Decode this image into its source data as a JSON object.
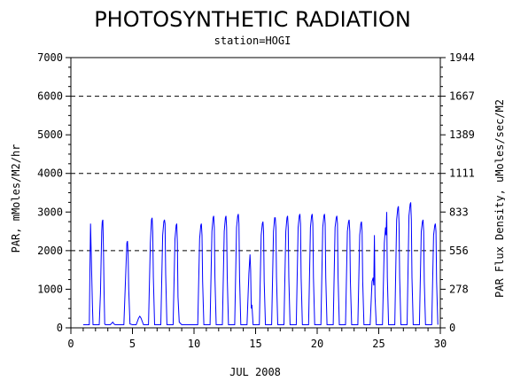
{
  "chart_data": {
    "type": "line",
    "title": "PHOTOSYNTHETIC RADIATION",
    "subtitle": "station=HOGI",
    "xlabel": "JUL 2008",
    "ylabel": "PAR, mMoles/M2/hr",
    "y2label": "PAR Flux Density, uMoles/sec/M2",
    "xlim": [
      0,
      30
    ],
    "ylim": [
      0,
      7000
    ],
    "x_ticks": [
      "0",
      "5",
      "10",
      "15",
      "20",
      "25",
      "30"
    ],
    "y_ticks": [
      "0",
      "1000",
      "2000",
      "3000",
      "4000",
      "5000",
      "6000",
      "7000"
    ],
    "y2_ticks": [
      "0",
      "278",
      "556",
      "833",
      "1111",
      "1389",
      "1667",
      "1944"
    ],
    "grid_y_dashed": [
      2000,
      4000,
      6000
    ],
    "line_color": "#0000ff",
    "series": [
      {
        "values_note_excluded": true,
        "x": [
          1.0,
          1.5,
          1.55,
          1.6,
          1.65,
          1.7,
          1.75,
          1.8,
          1.85,
          1.9,
          2.3,
          2.4,
          2.5,
          2.55,
          2.6,
          2.65,
          2.7,
          2.75,
          2.8,
          2.9,
          3.2,
          3.4,
          3.5,
          3.6,
          3.8,
          4.3,
          4.45,
          4.55,
          4.6,
          4.65,
          4.7,
          4.8,
          5.0,
          5.3,
          5.5,
          5.6,
          5.7,
          5.9,
          6.3,
          6.45,
          6.55,
          6.6,
          6.65,
          6.7,
          6.8,
          7.3,
          7.45,
          7.55,
          7.6,
          7.65,
          7.7,
          7.8,
          8.3,
          8.45,
          8.55,
          8.6,
          8.65,
          8.7,
          8.8,
          9.0,
          10.3,
          10.45,
          10.55,
          10.6,
          10.65,
          10.7,
          10.8,
          11.3,
          11.45,
          11.55,
          11.6,
          11.65,
          11.7,
          11.8,
          12.3,
          12.45,
          12.55,
          12.6,
          12.65,
          12.7,
          12.8,
          13.3,
          13.45,
          13.55,
          13.6,
          13.65,
          13.7,
          13.8,
          14.3,
          14.45,
          14.55,
          14.6,
          14.65,
          14.7,
          14.8,
          15.3,
          15.45,
          15.55,
          15.6,
          15.65,
          15.7,
          15.8,
          16.3,
          16.45,
          16.55,
          16.6,
          16.65,
          16.7,
          16.8,
          17.3,
          17.45,
          17.55,
          17.6,
          17.65,
          17.7,
          17.8,
          18.3,
          18.45,
          18.55,
          18.6,
          18.65,
          18.7,
          18.8,
          19.3,
          19.45,
          19.55,
          19.6,
          19.65,
          19.7,
          19.8,
          20.3,
          20.45,
          20.55,
          20.6,
          20.65,
          20.7,
          20.8,
          21.3,
          21.45,
          21.55,
          21.6,
          21.65,
          21.7,
          21.8,
          22.3,
          22.45,
          22.55,
          22.6,
          22.65,
          22.7,
          22.8,
          23.3,
          23.45,
          23.55,
          23.6,
          23.65,
          23.7,
          23.8,
          24.3,
          24.45,
          24.55,
          24.6,
          24.65,
          24.7,
          24.8,
          25.3,
          25.45,
          25.55,
          25.6,
          25.65,
          25.7,
          25.8,
          26.3,
          26.45,
          26.55,
          26.6,
          26.65,
          26.7,
          26.8,
          27.3,
          27.45,
          27.55,
          27.6,
          27.65,
          27.7,
          27.8,
          28.3,
          28.45,
          28.55,
          28.6,
          28.65,
          28.7,
          28.8,
          29.3,
          29.45,
          29.55,
          29.6,
          29.65,
          29.7,
          29.8
        ],
        "y": [
          80,
          80,
          1500,
          2700,
          2000,
          1300,
          600,
          80,
          80,
          80,
          80,
          900,
          2500,
          2750,
          2800,
          2000,
          900,
          100,
          80,
          80,
          80,
          150,
          100,
          80,
          80,
          80,
          1400,
          2200,
          2250,
          1900,
          1000,
          100,
          80,
          80,
          250,
          300,
          250,
          80,
          80,
          2200,
          2800,
          2850,
          2500,
          1300,
          80,
          80,
          2400,
          2750,
          2800,
          2700,
          1400,
          80,
          80,
          2300,
          2650,
          2700,
          2200,
          800,
          150,
          80,
          80,
          2300,
          2650,
          2700,
          2400,
          1200,
          80,
          80,
          2500,
          2850,
          2900,
          2600,
          1300,
          80,
          80,
          2500,
          2850,
          2900,
          2600,
          1300,
          80,
          80,
          2600,
          2900,
          2950,
          2700,
          1300,
          80,
          80,
          1400,
          1900,
          1500,
          500,
          600,
          80,
          80,
          2400,
          2700,
          2750,
          2500,
          1200,
          80,
          80,
          2500,
          2850,
          2850,
          2600,
          1300,
          80,
          80,
          2500,
          2850,
          2900,
          2600,
          1300,
          80,
          80,
          2600,
          2900,
          2950,
          2700,
          1300,
          80,
          80,
          2600,
          2900,
          2950,
          2700,
          1300,
          80,
          80,
          2600,
          2900,
          2950,
          2700,
          1300,
          80,
          80,
          2600,
          2850,
          2900,
          2700,
          1300,
          80,
          80,
          2500,
          2750,
          2800,
          2500,
          1200,
          80,
          80,
          2400,
          2700,
          2750,
          2500,
          1200,
          80,
          80,
          1200,
          1300,
          1100,
          2400,
          800,
          80,
          80,
          2200,
          2600,
          2400,
          3000,
          1300,
          80,
          80,
          2800,
          3100,
          3150,
          2700,
          1300,
          80,
          80,
          2900,
          3200,
          3250,
          2800,
          1300,
          80,
          80,
          2500,
          2750,
          2800,
          2500,
          1200,
          80,
          80,
          2400,
          2650,
          2700,
          2500,
          1200,
          80
        ]
      }
    ]
  }
}
